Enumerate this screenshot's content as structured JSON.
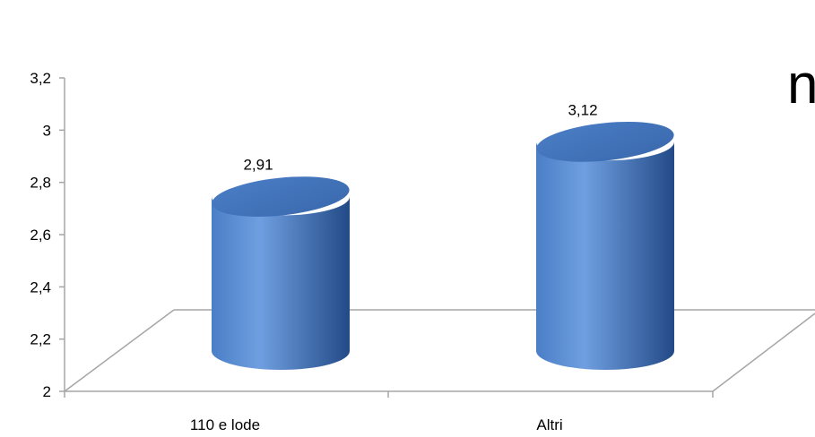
{
  "chart_data": {
    "type": "bar",
    "style": "3d-cylinder",
    "categories": [
      "110 e lode",
      "Altri"
    ],
    "values": [
      2.91,
      3.12
    ],
    "value_labels": [
      "2,91",
      "3,12"
    ],
    "y_ticks": [
      "2",
      "2,2",
      "2,4",
      "2,6",
      "2,8",
      "3",
      "3,2"
    ],
    "ylim": [
      2,
      3.2
    ],
    "grid": false,
    "legend": "none",
    "colors": {
      "bar_light": "#6f9fe0",
      "bar_mid": "#4a7ec6",
      "bar_dark": "#234a87",
      "bar_top": "#3a68ad",
      "axis": "#a6a6a6"
    }
  },
  "corner_text": "n"
}
